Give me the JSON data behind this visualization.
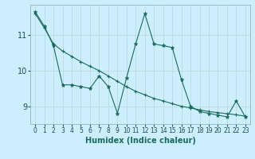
{
  "xlabel": "Humidex (Indice chaleur)",
  "background_color": "#cceeff",
  "grid_color": "#bbdddd",
  "line_color": "#1a6b5a",
  "xlim": [
    -0.5,
    23.5
  ],
  "ylim": [
    8.5,
    11.85
  ],
  "yticks": [
    9,
    10,
    11
  ],
  "xticks": [
    0,
    1,
    2,
    3,
    4,
    5,
    6,
    7,
    8,
    9,
    10,
    11,
    12,
    13,
    14,
    15,
    16,
    17,
    18,
    19,
    20,
    21,
    22,
    23
  ],
  "series1_x": [
    0,
    1,
    2,
    3,
    4,
    5,
    6,
    7,
    8,
    9,
    10,
    11,
    12,
    13,
    14,
    15,
    16,
    17,
    18,
    19,
    20,
    21,
    22,
    23
  ],
  "series1_y": [
    11.65,
    11.25,
    10.7,
    9.6,
    9.6,
    9.55,
    9.5,
    9.85,
    9.55,
    8.8,
    9.8,
    10.75,
    11.6,
    10.75,
    10.7,
    10.65,
    9.75,
    9.0,
    8.85,
    8.8,
    8.75,
    8.7,
    9.15,
    8.7
  ],
  "series2_x": [
    0,
    1,
    2,
    3,
    4,
    5,
    6,
    7,
    8,
    9,
    10,
    11,
    12,
    13,
    14,
    15,
    16,
    17,
    18,
    19,
    20,
    21,
    22,
    23
  ],
  "series2_y": [
    11.6,
    11.2,
    10.75,
    10.55,
    10.4,
    10.25,
    10.12,
    10.0,
    9.85,
    9.7,
    9.55,
    9.42,
    9.32,
    9.22,
    9.15,
    9.07,
    9.0,
    8.95,
    8.9,
    8.85,
    8.82,
    8.79,
    8.76,
    8.72
  ]
}
